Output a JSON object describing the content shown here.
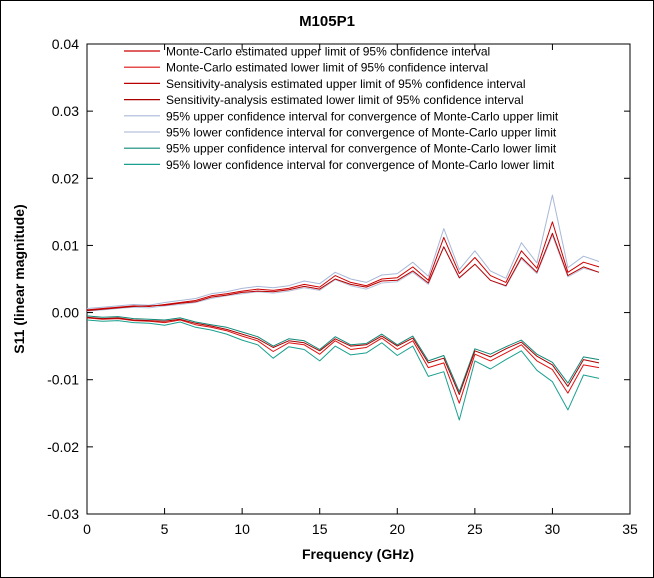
{
  "chart_data": {
    "type": "line",
    "title": "M105P1",
    "xlabel": "Frequency (GHz)",
    "ylabel": "S11 (linear magnitude)",
    "xlim": [
      0,
      35
    ],
    "ylim": [
      -0.03,
      0.04
    ],
    "xticks": [
      "0",
      "5",
      "10",
      "15",
      "20",
      "25",
      "30",
      "35"
    ],
    "yticks": [
      "-0.03",
      "-0.02",
      "-0.01",
      "0.00",
      "0.01",
      "0.02",
      "0.03",
      "0.04"
    ],
    "x_values": [
      0,
      1,
      2,
      3,
      4,
      5,
      6,
      7,
      8,
      9,
      10,
      11,
      12,
      13,
      14,
      15,
      16,
      17,
      18,
      19,
      20,
      21,
      22,
      23,
      24,
      25,
      26,
      27,
      28,
      29,
      30,
      31,
      32,
      33
    ],
    "legend_position": "top-right",
    "series": [
      {
        "name": "Monte-Carlo estimated upper limit of 95% confidence interval",
        "color": "#cc0000",
        "values": [
          0.0004,
          0.0006,
          0.0008,
          0.001,
          0.0009,
          0.0012,
          0.0015,
          0.0018,
          0.0025,
          0.0028,
          0.0032,
          0.0035,
          0.0033,
          0.0036,
          0.0042,
          0.0038,
          0.0055,
          0.0045,
          0.004,
          0.005,
          0.0052,
          0.0068,
          0.0048,
          0.0112,
          0.0058,
          0.0082,
          0.0055,
          0.0045,
          0.0092,
          0.0066,
          0.0135,
          0.006,
          0.0075,
          0.0068
        ]
      },
      {
        "name": "Monte-Carlo estimated lower limit of 95% confidence interval",
        "color": "#dd1111",
        "values": [
          -0.0008,
          -0.001,
          -0.0009,
          -0.0012,
          -0.0013,
          -0.0015,
          -0.0011,
          -0.0018,
          -0.0022,
          -0.0027,
          -0.0035,
          -0.0042,
          -0.0058,
          -0.0045,
          -0.0048,
          -0.0062,
          -0.0042,
          -0.0055,
          -0.0052,
          -0.0038,
          -0.0055,
          -0.0042,
          -0.0082,
          -0.0075,
          -0.0135,
          -0.0062,
          -0.0072,
          -0.006,
          -0.0048,
          -0.0072,
          -0.0085,
          -0.012,
          -0.0078,
          -0.0082
        ]
      },
      {
        "name": "Sensitivity-analysis estimated upper limit of 95% confidence interval",
        "color": "#bb0000",
        "values": [
          0.0003,
          0.0005,
          0.0007,
          0.0009,
          0.001,
          0.0011,
          0.0014,
          0.0016,
          0.0023,
          0.0026,
          0.003,
          0.0032,
          0.0031,
          0.0034,
          0.0039,
          0.0035,
          0.005,
          0.0042,
          0.0038,
          0.0047,
          0.0048,
          0.0062,
          0.0044,
          0.0098,
          0.0052,
          0.0072,
          0.0048,
          0.004,
          0.0082,
          0.006,
          0.0118,
          0.0055,
          0.0068,
          0.006
        ]
      },
      {
        "name": "Sensitivity-analysis estimated lower limit of 95% confidence interval",
        "color": "#aa0000",
        "values": [
          -0.0007,
          -0.0009,
          -0.0008,
          -0.0011,
          -0.0012,
          -0.0013,
          -0.001,
          -0.0016,
          -0.002,
          -0.0025,
          -0.0032,
          -0.0039,
          -0.0052,
          -0.0042,
          -0.0045,
          -0.0057,
          -0.0039,
          -0.005,
          -0.0048,
          -0.0035,
          -0.005,
          -0.0038,
          -0.0075,
          -0.0068,
          -0.0122,
          -0.0057,
          -0.0066,
          -0.0054,
          -0.0044,
          -0.0065,
          -0.0078,
          -0.011,
          -0.007,
          -0.0075
        ]
      },
      {
        "name": "95% upper confidence interval for convergence of Monte-Carlo upper limit",
        "color": "#a8b8d8",
        "values": [
          0.0006,
          0.0008,
          0.001,
          0.0012,
          0.0011,
          0.0015,
          0.0018,
          0.0021,
          0.0028,
          0.0031,
          0.0036,
          0.0039,
          0.0037,
          0.004,
          0.0047,
          0.0043,
          0.006,
          0.005,
          0.0045,
          0.0056,
          0.0058,
          0.0075,
          0.0054,
          0.0125,
          0.0064,
          0.0092,
          0.0062,
          0.0051,
          0.0104,
          0.0074,
          0.0175,
          0.0067,
          0.0084,
          0.0076
        ]
      },
      {
        "name": "95% lower confidence interval for convergence of Monte-Carlo upper limit",
        "color": "#b8c4dc",
        "values": [
          0.0002,
          0.0004,
          0.0006,
          0.0008,
          0.0007,
          0.001,
          0.0012,
          0.0015,
          0.0021,
          0.0025,
          0.0028,
          0.0031,
          0.0029,
          0.0032,
          0.0037,
          0.0033,
          0.0049,
          0.004,
          0.0035,
          0.0044,
          0.0046,
          0.006,
          0.0042,
          0.0098,
          0.0051,
          0.0072,
          0.0048,
          0.0039,
          0.008,
          0.0058,
          0.0115,
          0.0053,
          0.0066,
          0.006
        ]
      },
      {
        "name": "95% upper confidence interval for convergence of Monte-Carlo lower limit",
        "color": "#108878",
        "values": [
          -0.0005,
          -0.0007,
          -0.0006,
          -0.0009,
          -0.001,
          -0.0011,
          -0.0008,
          -0.0014,
          -0.0018,
          -0.0022,
          -0.0029,
          -0.0036,
          -0.005,
          -0.0039,
          -0.0042,
          -0.0055,
          -0.0036,
          -0.0048,
          -0.0046,
          -0.0032,
          -0.0048,
          -0.0035,
          -0.0072,
          -0.0064,
          -0.0118,
          -0.0054,
          -0.0062,
          -0.0051,
          -0.0041,
          -0.0062,
          -0.0074,
          -0.0105,
          -0.0066,
          -0.007
        ]
      },
      {
        "name": "95% lower confidence interval for convergence of Monte-Carlo lower limit",
        "color": "#1aa090",
        "values": [
          -0.0011,
          -0.0013,
          -0.0012,
          -0.0015,
          -0.0016,
          -0.0019,
          -0.0014,
          -0.0022,
          -0.0026,
          -0.0032,
          -0.0041,
          -0.0048,
          -0.0068,
          -0.0051,
          -0.0055,
          -0.0072,
          -0.005,
          -0.0063,
          -0.006,
          -0.0045,
          -0.0064,
          -0.005,
          -0.0095,
          -0.0088,
          -0.016,
          -0.0072,
          -0.0084,
          -0.007,
          -0.0057,
          -0.0086,
          -0.0103,
          -0.0145,
          -0.0093,
          -0.0098
        ]
      }
    ]
  }
}
